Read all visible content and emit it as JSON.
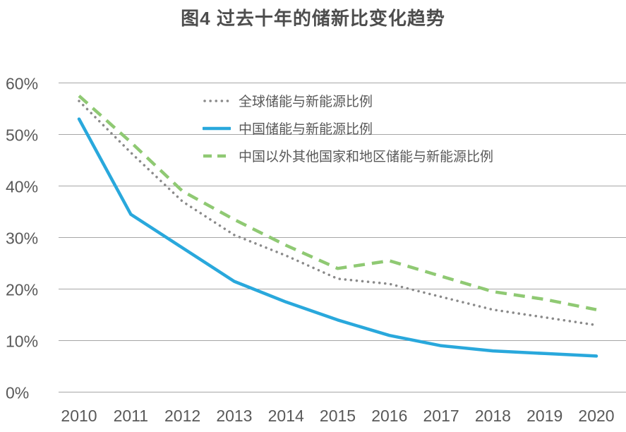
{
  "title": "图4 过去十年的储新比变化趋势",
  "colors": {
    "title_text": "#4d4d4d",
    "axis_label": "#595959",
    "gridline": "#a6a6a6",
    "background": "#ffffff",
    "series_global": "#8a8a8a",
    "series_china": "#29a8dc",
    "series_ex_china": "#8fc973"
  },
  "chart_data": {
    "type": "line",
    "title": "图4 过去十年的储新比变化趋势",
    "x": [
      2010,
      2011,
      2012,
      2013,
      2014,
      2015,
      2016,
      2017,
      2018,
      2019,
      2020
    ],
    "series": [
      {
        "name": "全球储能与新能源比例",
        "style": "dotted",
        "color": "#8a8a8a",
        "values": [
          56.5,
          46.5,
          37,
          30.5,
          26.5,
          22,
          21,
          18.5,
          16,
          14.5,
          13
        ]
      },
      {
        "name": "中国储能与新能源比例",
        "style": "solid",
        "color": "#29a8dc",
        "values": [
          53,
          34.5,
          28,
          21.5,
          17.5,
          14,
          11,
          9,
          8,
          7.5,
          7
        ]
      },
      {
        "name": "中国以外其他国家和地区储能与新能源比例",
        "style": "dashed",
        "color": "#8fc973",
        "values": [
          57.5,
          48.5,
          39,
          33.5,
          28.5,
          24,
          25.5,
          22.5,
          19.5,
          18,
          16
        ]
      }
    ],
    "ylim": [
      0,
      60
    ],
    "ytick_step": 10,
    "ytick_suffix": "%",
    "grid": "horizontal",
    "legend_position": "inside-top-left"
  }
}
